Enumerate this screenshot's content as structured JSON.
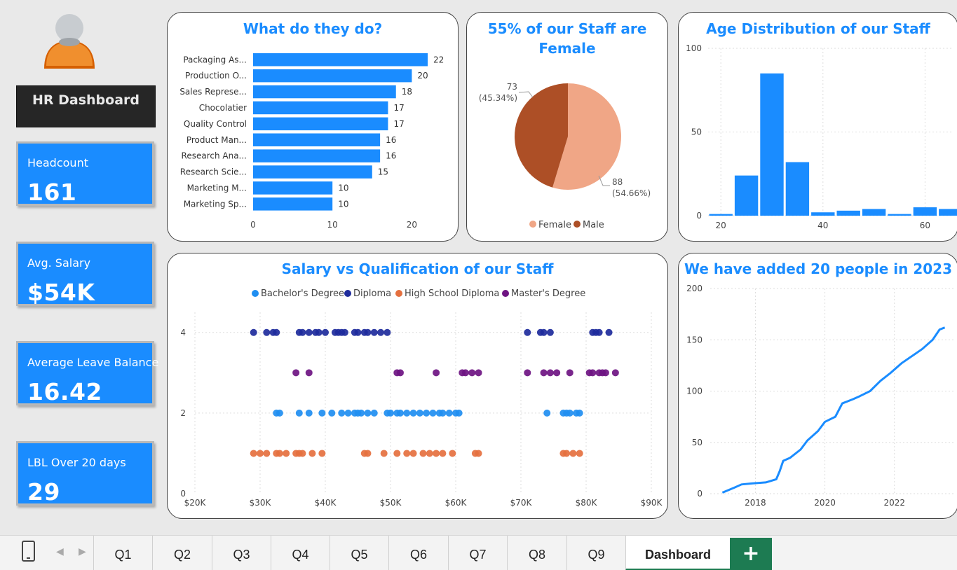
{
  "dashboard": {
    "title": "HR Dashboard"
  },
  "kpis": [
    {
      "label": "Headcount",
      "value": "161"
    },
    {
      "label": "Avg. Salary",
      "value": "$54K"
    },
    {
      "label": "Average Leave Balance",
      "value": "16.42"
    },
    {
      "label": "LBL Over 20 days",
      "value": "29"
    }
  ],
  "colors": {
    "accent": "#1a8cff",
    "female": "#f0a686",
    "male": "#ad4f26",
    "bachelor": "#1f8ef1",
    "diploma": "#1e2b9c",
    "highschool": "#e5703f",
    "masters": "#6e1482",
    "tab_add": "#1d7b52"
  },
  "tabs": [
    "Q1",
    "Q2",
    "Q3",
    "Q4",
    "Q5",
    "Q6",
    "Q7",
    "Q8",
    "Q9",
    "Dashboard"
  ],
  "active_tab": "Dashboard",
  "tab_add_label": "+",
  "icons": {
    "device": "phone-icon",
    "prev": "chevron-left-icon",
    "next": "chevron-right-icon",
    "avatar": "person-avatar-icon"
  },
  "chart_data": [
    {
      "type": "bar",
      "orientation": "horizontal",
      "title": "What do they do?",
      "categories": [
        "Packaging As...",
        "Production O...",
        "Sales Represe...",
        "Chocolatier",
        "Quality Control",
        "Product Man...",
        "Research Ana...",
        "Research Scie...",
        "Marketing M...",
        "Marketing Sp..."
      ],
      "values": [
        22,
        20,
        18,
        17,
        17,
        16,
        16,
        15,
        10,
        10
      ],
      "xlim": [
        0,
        22
      ],
      "xticks": [
        "0",
        "10",
        "20"
      ],
      "grid": false
    },
    {
      "type": "pie",
      "title": "55% of our Staff are Female",
      "slices": [
        {
          "name": "Female",
          "value": 88,
          "label": "88",
          "pct": "(54.66%)"
        },
        {
          "name": "Male",
          "value": 73,
          "label": "73",
          "pct": "(45.34%)"
        }
      ],
      "legend": "bottom"
    },
    {
      "type": "bar",
      "title": "Age Distribution of our Staff",
      "bins": [
        {
          "x": 20,
          "value": 1
        },
        {
          "x": 25,
          "value": 24
        },
        {
          "x": 30,
          "value": 85
        },
        {
          "x": 35,
          "value": 32
        },
        {
          "x": 40,
          "value": 2
        },
        {
          "x": 45,
          "value": 3
        },
        {
          "x": 50,
          "value": 4
        },
        {
          "x": 55,
          "value": 1
        },
        {
          "x": 60,
          "value": 5
        },
        {
          "x": 65,
          "value": 4
        }
      ],
      "xlim": [
        17.5,
        67.5
      ],
      "xticks": [
        "20",
        "40",
        "60"
      ],
      "ylim": [
        0,
        100
      ],
      "yticks": [
        "0",
        "50",
        "100"
      ],
      "grid": true
    },
    {
      "type": "scatter",
      "title": "Salary vs Qualification of our Staff",
      "legend": "top",
      "xlim": [
        20000,
        90000
      ],
      "ylim": [
        0,
        4.5
      ],
      "xticks": [
        "$20K",
        "$30K",
        "$40K",
        "$50K",
        "$60K",
        "$70K",
        "$80K",
        "$90K"
      ],
      "yticks": [
        "0",
        "2",
        "4"
      ],
      "grid": true,
      "series": [
        {
          "name": "Bachelor's Degree",
          "y": 2,
          "x": [
            32500,
            33000,
            36000,
            37500,
            39500,
            41000,
            42500,
            43500,
            44500,
            45000,
            45500,
            46500,
            47500,
            49500,
            50000,
            51000,
            51500,
            52500,
            53500,
            54500,
            55500,
            56500,
            57500,
            58000,
            59000,
            60000,
            60500,
            74000,
            76500,
            77000,
            77500,
            78500,
            79000
          ]
        },
        {
          "name": "Diploma",
          "y": 4,
          "x": [
            29000,
            31000,
            32000,
            32500,
            36000,
            36500,
            37500,
            38500,
            39000,
            40000,
            41500,
            42000,
            42500,
            43000,
            44500,
            45000,
            46000,
            46500,
            47500,
            48500,
            49500,
            71000,
            73000,
            73500,
            74500,
            81000,
            81500,
            82000,
            83500
          ]
        },
        {
          "name": "High School Diploma",
          "y": 1,
          "x": [
            29000,
            30000,
            31000,
            32500,
            33000,
            34000,
            35500,
            36000,
            36500,
            38000,
            39500,
            46000,
            46500,
            49000,
            51000,
            52500,
            53500,
            55000,
            56000,
            57000,
            58000,
            59500,
            63000,
            63500,
            76500,
            77000,
            78000,
            79000
          ]
        },
        {
          "name": "Master's Degree",
          "y": 3,
          "x": [
            35500,
            37500,
            51000,
            51500,
            57000,
            61000,
            61500,
            62500,
            63500,
            71000,
            73500,
            74500,
            75500,
            77500,
            80500,
            81000,
            82000,
            82500,
            83000,
            84500
          ]
        }
      ]
    },
    {
      "type": "line",
      "title": "We have added 20 people in 2023",
      "xlim": [
        2016.7,
        2023.7
      ],
      "xticks": [
        "2018",
        "2020",
        "2022"
      ],
      "ylim": [
        0,
        200
      ],
      "yticks": [
        "0",
        "50",
        "100",
        "150",
        "200"
      ],
      "grid": true,
      "x": [
        2017.05,
        2017.4,
        2017.6,
        2017.9,
        2018.3,
        2018.6,
        2018.7,
        2018.8,
        2019.0,
        2019.3,
        2019.5,
        2019.8,
        2020.0,
        2020.3,
        2020.5,
        2020.8,
        2021.0,
        2021.3,
        2021.6,
        2021.9,
        2022.2,
        2022.5,
        2022.8,
        2023.1,
        2023.3,
        2023.45
      ],
      "values": [
        1,
        6,
        9,
        10,
        11,
        14,
        22,
        32,
        35,
        43,
        52,
        61,
        70,
        75,
        88,
        92,
        95,
        100,
        110,
        118,
        127,
        134,
        141,
        150,
        160,
        162
      ]
    }
  ]
}
